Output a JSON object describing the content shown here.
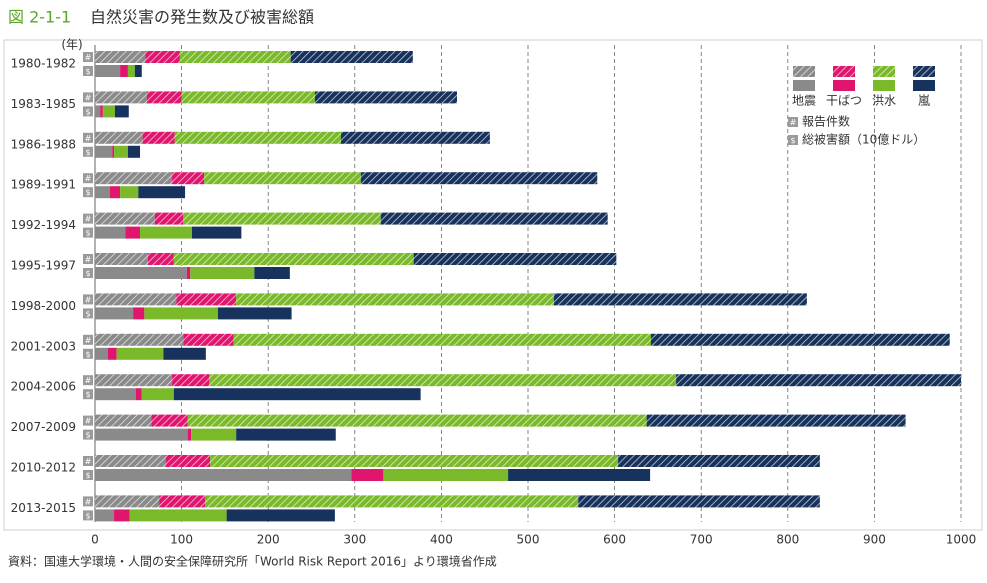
{
  "figure_label": "図 2-1-1",
  "title": "自然災害の発生数及び被害総額",
  "source": "資料：国連大学環境・人間の安全保障研究所「World Risk Report 2016」より環境省作成",
  "chart_data": {
    "type": "bar",
    "orientation": "horizontal",
    "stacked": true,
    "y_label": "(年)",
    "categories": [
      "1980-1982",
      "1983-1985",
      "1986-1988",
      "1989-1991",
      "1992-1994",
      "1995-1997",
      "1998-2000",
      "2001-2003",
      "2004-2006",
      "2007-2009",
      "2010-2012",
      "2013-2015"
    ],
    "xlim": [
      0,
      1000
    ],
    "xticks": [
      0,
      100,
      200,
      300,
      400,
      500,
      600,
      700,
      800,
      900,
      1000
    ],
    "grid": true,
    "measures": [
      {
        "key": "values",
        "name": "報告件数",
        "marker": "#",
        "pattern": "hatch"
      },
      {
        "key": "damage_values",
        "name": "総被害額（10億ドル）",
        "marker": "$",
        "pattern": "solid"
      }
    ],
    "series": [
      {
        "name": "地震",
        "color": "#8a8a8a",
        "values": [
          58,
          60,
          55,
          89,
          69,
          61,
          94,
          102,
          89,
          65,
          82,
          74
        ],
        "damage_values": [
          29,
          6,
          20,
          17,
          35,
          106,
          44,
          15,
          47,
          107,
          296,
          22
        ]
      },
      {
        "name": "干ばつ",
        "color": "#e0156e",
        "values": [
          40,
          40,
          37,
          37,
          33,
          30,
          69,
          58,
          43,
          42,
          51,
          53
        ],
        "damage_values": [
          9,
          3,
          2,
          12,
          17,
          4,
          13,
          10,
          7,
          4,
          37,
          18
        ]
      },
      {
        "name": "洪水",
        "color": "#7ab929",
        "values": [
          128,
          154,
          192,
          181,
          228,
          277,
          367,
          482,
          539,
          530,
          471,
          431
        ],
        "damage_values": [
          8,
          14,
          16,
          21,
          60,
          74,
          85,
          54,
          37,
          52,
          144,
          112
        ]
      },
      {
        "name": "嵐",
        "color": "#17325c",
        "values": [
          141,
          164,
          172,
          273,
          262,
          234,
          292,
          345,
          329,
          299,
          233,
          279
        ],
        "damage_values": [
          8,
          16,
          14,
          54,
          57,
          41,
          85,
          49,
          285,
          115,
          164,
          125
        ]
      }
    ]
  }
}
